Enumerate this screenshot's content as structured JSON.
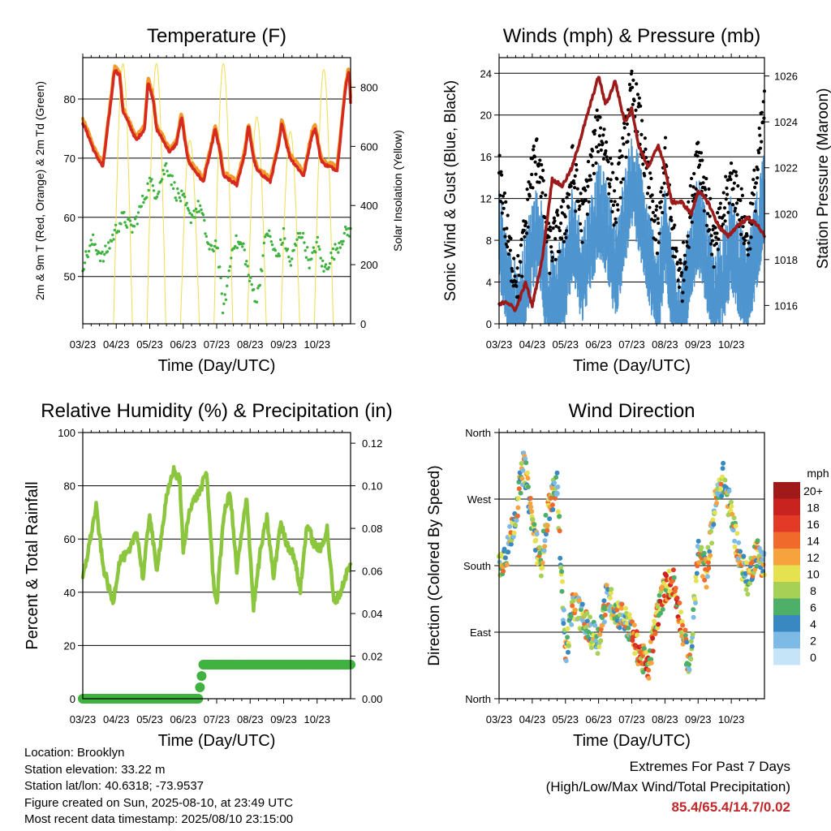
{
  "dates": [
    "03/23",
    "04/23",
    "05/23",
    "06/23",
    "07/23",
    "08/23",
    "09/23",
    "10/23"
  ],
  "colors": {
    "temp2m": "#d62a20",
    "temp9m": "#f39a2a",
    "dewpoint": "#3fb23f",
    "insolation": "#f2dc4e",
    "gust": "#000000",
    "wind": "#4f95cf",
    "pressure": "#9c1a1a",
    "rh": "#8cc63f",
    "precip": "#3fb23f"
  },
  "info": {
    "location": "Location: Brooklyn",
    "elevation": "Station elevation: 33.22 m",
    "latlon": "Station lat/lon: 40.6318; -73.9537",
    "created": "Figure created on Sun, 2025-08-10, at 23:49 UTC",
    "timestamp": "Most recent data timestamp: 2025/08/10 23:15:00"
  },
  "extremes": {
    "title": "Extremes For Past 7 Days",
    "subtitle": "(High/Low/Max Wind/Total Precipitation)",
    "values": "85.4/65.4/14.7/0.02"
  },
  "chart_data": [
    {
      "id": "temp",
      "type": "line",
      "title": "Temperature (F)",
      "xlabel": "Time (Day/UTC)",
      "ylabel": "2m & 9m T (Red, Orange) & 2m Td (Green)",
      "y2label": "Solar Insolation (Yellow)",
      "ylim": [
        42,
        87
      ],
      "y2lim": [
        0,
        900
      ],
      "yticks": [
        50,
        60,
        70,
        80
      ],
      "y2ticks": [
        0,
        200,
        400,
        600,
        800
      ],
      "grid": true,
      "series": [
        {
          "key": "temp2m",
          "x": [
            0,
            0.15,
            0.35,
            0.6,
            0.85,
            0.95,
            1.1,
            1.2,
            1.6,
            1.85,
            1.95,
            2.1,
            2.2,
            2.6,
            2.8,
            2.95,
            3.1,
            3.2,
            3.6,
            3.85,
            3.95,
            4.1,
            4.2,
            4.6,
            4.85,
            4.95,
            5.1,
            5.2,
            5.6,
            5.85,
            5.95,
            6.1,
            6.2,
            6.6,
            6.85,
            6.95,
            7.1,
            7.2,
            7.6,
            7.85,
            7.95,
            8
          ],
          "values": [
            76,
            74,
            71,
            68.5,
            80,
            85,
            84,
            78,
            73,
            75,
            83,
            80,
            75,
            71,
            72.5,
            77,
            71,
            69,
            66,
            72,
            75,
            71,
            67,
            65.5,
            71,
            75.5,
            70,
            68,
            66,
            72,
            76,
            72,
            70,
            67,
            74,
            75,
            70,
            69,
            68,
            82,
            85,
            79.5
          ]
        },
        {
          "key": "dewpoint",
          "x": [
            0,
            0.3,
            0.6,
            1,
            1.2,
            1.5,
            2,
            2.2,
            2.5,
            2.8,
            3,
            3.2,
            3.5,
            3.8,
            4,
            4.2,
            4.5,
            4.8,
            5,
            5.2,
            5.5,
            5.8,
            6,
            6.2,
            6.5,
            6.8,
            7,
            7.2,
            7.5,
            7.8,
            8
          ],
          "values": [
            52,
            56,
            53,
            58,
            60,
            58,
            66,
            64,
            69,
            64,
            63,
            60,
            62,
            54,
            56,
            44,
            56,
            55,
            49,
            46,
            58,
            53,
            57,
            52,
            58,
            52,
            56,
            51,
            54,
            57,
            58
          ]
        },
        {
          "key": "insolation",
          "type": "daily-peaks",
          "peak_hours": [
            1.2,
            2.2,
            3.2,
            4.2,
            5.2,
            6.2,
            7.2
          ],
          "values": [
            880,
            880,
            620,
            880,
            700,
            650,
            860
          ]
        }
      ]
    },
    {
      "id": "wind",
      "type": "line",
      "title": "Winds (mph) & Pressure (mb)",
      "xlabel": "Time (Day/UTC)",
      "ylabel": "Sonic Wind & Gust (Blue, Black)",
      "y2label": "Station Pressure (Maroon)",
      "ylim": [
        0,
        25.5
      ],
      "y2lim": [
        1015.2,
        1026.8
      ],
      "yticks": [
        0,
        4,
        8,
        12,
        16,
        20,
        24
      ],
      "y2ticks": [
        1016,
        1018,
        1020,
        1022,
        1024,
        1026
      ],
      "grid": true,
      "series": [
        {
          "key": "gust",
          "x": [
            0,
            0.3,
            0.6,
            1,
            1.2,
            1.5,
            2,
            2.2,
            2.5,
            3,
            3.2,
            3.5,
            4,
            4.2,
            4.5,
            4.8,
            5,
            5.2,
            5.5,
            6,
            6.2,
            6.5,
            7,
            7.2,
            7.5,
            7.8,
            8
          ],
          "values": [
            15,
            7,
            4,
            15,
            16,
            7,
            10,
            15,
            10,
            19,
            17,
            11,
            22,
            20,
            13,
            8,
            16,
            9,
            4,
            17,
            13,
            7,
            14,
            12,
            8,
            15,
            21
          ]
        },
        {
          "key": "wind",
          "x": [
            0,
            0.3,
            0.6,
            1,
            1.2,
            1.5,
            2,
            2.2,
            2.5,
            3,
            3.2,
            3.5,
            4,
            4.2,
            4.5,
            4.8,
            5,
            5.2,
            5.5,
            6,
            6.2,
            6.5,
            7,
            7.2,
            7.5,
            7.8,
            8
          ],
          "values": [
            10,
            4,
            2,
            9,
            10,
            3,
            6,
            10,
            6,
            12,
            11,
            6,
            15,
            13,
            8,
            4,
            10,
            5,
            2,
            11,
            8,
            3,
            9,
            7,
            4,
            10,
            14
          ]
        },
        {
          "key": "pressure",
          "x": [
            0,
            0.2,
            0.5,
            0.8,
            1,
            1.3,
            1.6,
            1.9,
            2.2,
            2.5,
            2.8,
            3.0,
            3.2,
            3.3,
            3.5,
            3.7,
            3.8,
            4.0,
            4.2,
            4.5,
            4.8,
            5.0,
            5.2,
            5.5,
            5.8,
            6.0,
            6.3,
            6.6,
            6.9,
            7.2,
            7.5,
            7.8,
            8
          ],
          "values": [
            1016,
            1016.2,
            1015.8,
            1017,
            1016,
            1018,
            1021.5,
            1021.2,
            1022,
            1023.5,
            1025,
            1026,
            1024.8,
            1025,
            1025.8,
            1024.5,
            1024,
            1024.6,
            1023,
            1022,
            1023,
            1022,
            1020.5,
            1020.5,
            1020,
            1021,
            1020.5,
            1019.5,
            1019,
            1019.5,
            1019.8,
            1019.5,
            1019
          ]
        }
      ]
    },
    {
      "id": "rh",
      "type": "line",
      "title": "Relative Humidity (%) & Precipitation (in)",
      "xlabel": "Time (Day/UTC)",
      "ylabel": "Percent & Total Rainfall",
      "ylim": [
        0,
        100
      ],
      "y2lim": [
        0,
        0.125
      ],
      "yticks": [
        0,
        20,
        40,
        60,
        80,
        100
      ],
      "y2ticks": [
        "0.00",
        "0.02",
        "0.04",
        "0.06",
        "0.08",
        "0.10",
        "0.12"
      ],
      "grid": true,
      "series": [
        {
          "key": "rh",
          "x": [
            0,
            0.15,
            0.4,
            0.6,
            0.9,
            1.1,
            1.4,
            1.6,
            1.8,
            2.0,
            2.2,
            2.5,
            2.7,
            2.9,
            3.0,
            3.2,
            3.5,
            3.7,
            3.9,
            4.0,
            4.2,
            4.4,
            4.6,
            4.9,
            5.1,
            5.3,
            5.5,
            5.7,
            5.9,
            6.1,
            6.3,
            6.5,
            6.7,
            6.9,
            7.1,
            7.3,
            7.5,
            7.7,
            7.9,
            8
          ],
          "values": [
            45,
            55,
            72,
            50,
            36,
            52,
            55,
            64,
            45,
            70,
            48,
            75,
            86,
            82,
            55,
            72,
            78,
            85,
            45,
            35,
            68,
            78,
            48,
            76,
            34,
            55,
            68,
            45,
            66,
            58,
            54,
            41,
            66,
            58,
            56,
            64,
            36,
            40,
            48,
            50
          ]
        },
        {
          "key": "precip",
          "x": [
            0,
            3.45,
            3.6,
            8
          ],
          "values": [
            0,
            0,
            0.016,
            0.016
          ]
        }
      ]
    },
    {
      "id": "dir",
      "type": "scatter",
      "title": "Wind Direction",
      "xlabel": "Time (Day/UTC)",
      "ylabel": "Direction (Colored By Speed)",
      "yticks": [
        "North",
        "East",
        "South",
        "West",
        "North"
      ],
      "ylim": [
        0,
        360
      ],
      "legend_title": "mph",
      "legend": [
        "20+",
        "18",
        "16",
        "14",
        "12",
        "10",
        "8",
        "6",
        "4",
        "2",
        "0"
      ],
      "legend_colors": [
        "#a11a1a",
        "#c8231f",
        "#e23a26",
        "#f06a2b",
        "#f7a33d",
        "#e6e24f",
        "#a6d156",
        "#4daf68",
        "#3a88c2",
        "#7dbbe6",
        "#c6e4f7"
      ],
      "legend_position": "right",
      "series": [
        {
          "x": [
            0,
            0.25,
            0.5,
            0.75,
            1.0,
            1.25,
            1.5,
            1.75,
            2.0,
            2.25,
            2.5,
            2.75,
            3.0,
            3.25,
            3.5,
            3.75,
            4.0,
            4.25,
            4.5,
            4.75,
            5.0,
            5.25,
            5.5,
            5.75,
            6.0,
            6.25,
            6.5,
            6.75,
            7.0,
            7.25,
            7.5,
            7.75,
            8.0
          ],
          "values": [
            180,
            200,
            250,
            320,
            240,
            180,
            260,
            290,
            60,
            130,
            110,
            90,
            80,
            140,
            120,
            110,
            90,
            60,
            40,
            110,
            150,
            160,
            100,
            40,
            200,
            170,
            260,
            300,
            250,
            190,
            160,
            200,
            180
          ]
        }
      ]
    }
  ]
}
